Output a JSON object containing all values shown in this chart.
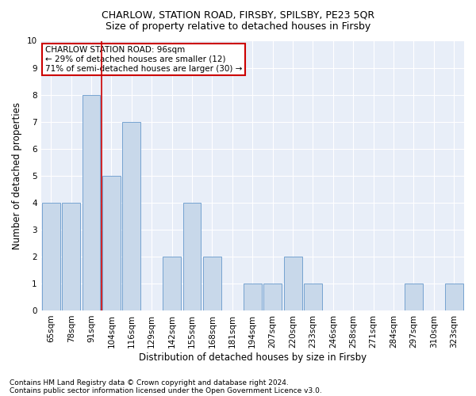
{
  "title1": "CHARLOW, STATION ROAD, FIRSBY, SPILSBY, PE23 5QR",
  "title2": "Size of property relative to detached houses in Firsby",
  "xlabel": "Distribution of detached houses by size in Firsby",
  "ylabel": "Number of detached properties",
  "footnote1": "Contains HM Land Registry data © Crown copyright and database right 2024.",
  "footnote2": "Contains public sector information licensed under the Open Government Licence v3.0.",
  "annotation_line1": "CHARLOW STATION ROAD: 96sqm",
  "annotation_line2": "← 29% of detached houses are smaller (12)",
  "annotation_line3": "71% of semi-detached houses are larger (30) →",
  "categories": [
    "65sqm",
    "78sqm",
    "91sqm",
    "104sqm",
    "116sqm",
    "129sqm",
    "142sqm",
    "155sqm",
    "168sqm",
    "181sqm",
    "194sqm",
    "207sqm",
    "220sqm",
    "233sqm",
    "246sqm",
    "258sqm",
    "271sqm",
    "284sqm",
    "297sqm",
    "310sqm",
    "323sqm"
  ],
  "values": [
    4,
    4,
    8,
    5,
    7,
    0,
    2,
    4,
    2,
    0,
    1,
    1,
    2,
    1,
    0,
    0,
    0,
    0,
    1,
    0,
    1
  ],
  "bar_color": "#c8d8ea",
  "bar_edge_color": "#6699cc",
  "red_line_index": 2,
  "ylim": [
    0,
    10
  ],
  "yticks": [
    0,
    1,
    2,
    3,
    4,
    5,
    6,
    7,
    8,
    9,
    10
  ],
  "plot_bg": "#e8eef8",
  "annotation_box_facecolor": "white",
  "annotation_box_edgecolor": "#cc0000",
  "title1_fontsize": 9,
  "title2_fontsize": 9,
  "xlabel_fontsize": 8.5,
  "ylabel_fontsize": 8.5,
  "tick_fontsize": 7.5,
  "annot_fontsize": 7.5,
  "footnote_fontsize": 6.5
}
